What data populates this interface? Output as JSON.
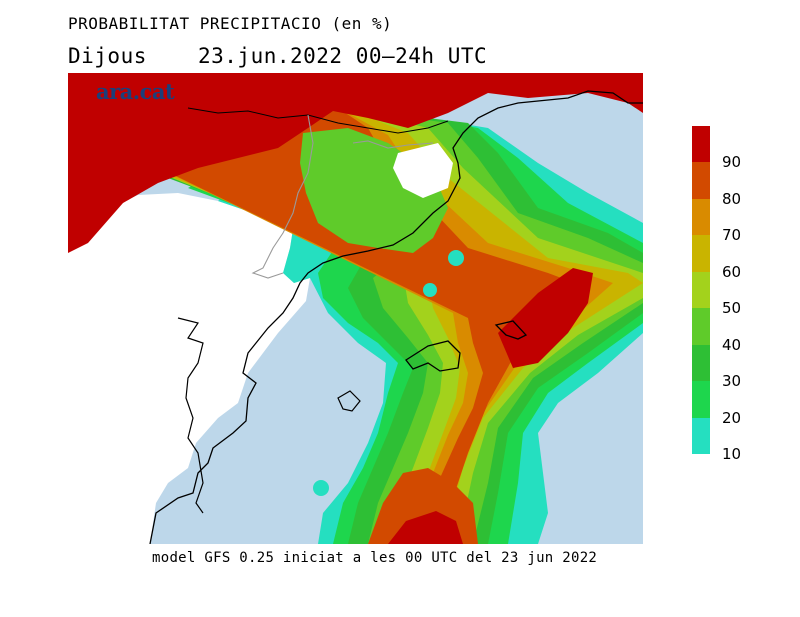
{
  "title": "PROBABILITAT PRECIPITACIO (en %)",
  "day": "Dijous",
  "date_range": "23.jun.2022 00–24h UTC",
  "footer": "model GFS 0.25 iniciat a les 00 UTC del 23 jun 2022",
  "logo": "ara.cat",
  "legend": {
    "labels": [
      "90",
      "80",
      "70",
      "60",
      "50",
      "40",
      "30",
      "20",
      "10"
    ],
    "bins": [
      {
        "color": "#c00000"
      },
      {
        "color": "#d24a00"
      },
      {
        "color": "#d98b00"
      },
      {
        "color": "#c9b400"
      },
      {
        "color": "#a3d21c"
      },
      {
        "color": "#5fcb2a"
      },
      {
        "color": "#2ebf35"
      },
      {
        "color": "#1ed64d"
      },
      {
        "color": "#25dfc0"
      }
    ]
  },
  "colors": {
    "sea": "#bdd7ea",
    "land_no_precip": "#ffffff",
    "coastline": "#000000",
    "borders": "#9a9a9a"
  }
}
